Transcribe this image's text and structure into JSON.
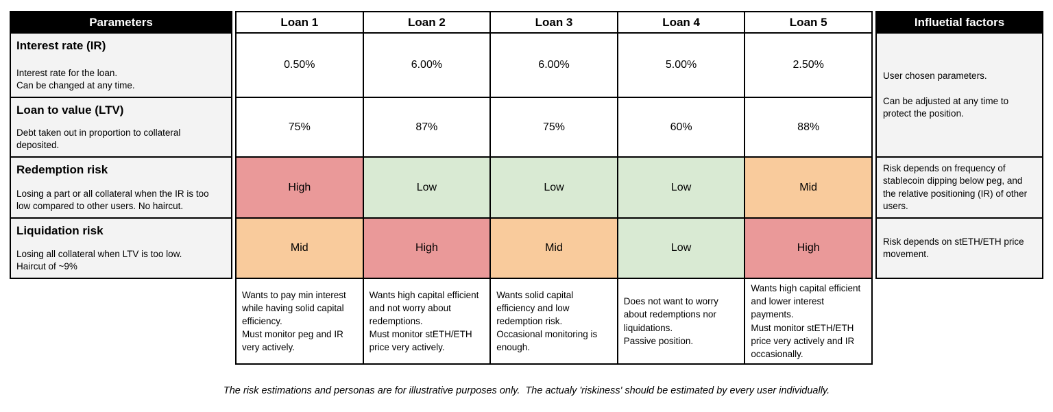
{
  "table": {
    "parameters_header": "Parameters",
    "factors_header": "Influetial factors",
    "rows": [
      {
        "title": "Interest rate (IR)",
        "desc": "Interest rate for the loan.\nCan be changed at any time."
      },
      {
        "title": "Loan to value (LTV)",
        "desc": "Debt taken out in proportion to collateral deposited."
      },
      {
        "title": "Redemption risk",
        "desc": "Losing a part or all collateral when the IR is too low compared to other users. No haircut."
      },
      {
        "title": "Liquidation risk",
        "desc": "Losing all collateral when LTV is too low.\nHaircut of ~9%"
      }
    ],
    "loans": [
      {
        "label": "Loan 1",
        "interest_rate": "0.50%",
        "ltv": "75%",
        "redemption_risk": "High",
        "liquidation_risk": "Mid",
        "persona": "Wants to pay min interest while having solid capital efficiency.\nMust monitor peg and IR very actively."
      },
      {
        "label": "Loan 2",
        "interest_rate": "6.00%",
        "ltv": "87%",
        "redemption_risk": "Low",
        "liquidation_risk": "High",
        "persona": "Wants high capital efficient and not worry about redemptions.\nMust monitor stETH/ETH price very actively."
      },
      {
        "label": "Loan 3",
        "interest_rate": "6.00%",
        "ltv": "75%",
        "redemption_risk": "Low",
        "liquidation_risk": "Mid",
        "persona": "Wants solid capital efficiency and low redemption risk.\nOccasional monitoring is enough."
      },
      {
        "label": "Loan 4",
        "interest_rate": "5.00%",
        "ltv": "60%",
        "redemption_risk": "Low",
        "liquidation_risk": "Low",
        "persona": "Does not want to worry about redemptions nor liquidations.\nPassive position."
      },
      {
        "label": "Loan 5",
        "interest_rate": "2.50%",
        "ltv": "88%",
        "redemption_risk": "Mid",
        "liquidation_risk": "High",
        "persona": "Wants high capital efficient and lower interest payments.\nMust monitor stETH/ETH price very actively and IR occasionally."
      }
    ],
    "factors": {
      "parameters": "User chosen parameters.\n\nCan be adjusted at any time to protect the position.",
      "redemption": "Risk depends on frequency of stablecoin dipping below peg, and the relative positioning (IR) of other users.",
      "liquidation": "Risk depends on stETH/ETH price movement."
    }
  },
  "colors": {
    "risk_levels": {
      "High": "#ea9999",
      "Mid": "#f9cb9c",
      "Low": "#d9ead3"
    },
    "header_bg": "#000000",
    "header_fg": "#ffffff",
    "panel_bg": "#f3f3f3",
    "border": "#000000"
  },
  "footer": {
    "disclaimer": "The risk estimations and personas are for illustrative purposes only.  The actualy 'riskiness' should be estimated by every user individually."
  }
}
